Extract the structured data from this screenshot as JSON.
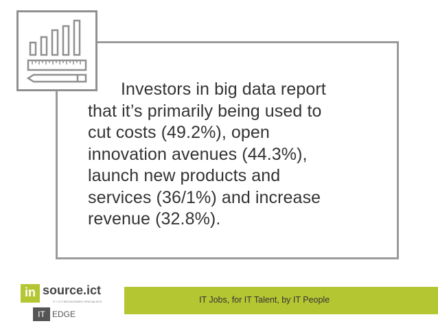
{
  "quote": {
    "text": "Investors in big data report\nthat it’s primarily being used to\ncut costs (49.2%), open\ninnovation avenues (44.3%),\nlaunch new products and\nservices (36/1%) and increase\nrevenue (32.8%)."
  },
  "icon": {
    "name": "bar-chart-ruler-pencil-icon"
  },
  "logo": {
    "mark": "in",
    "name": "source.ict",
    "tagline": "IT + ICT RECRUITMENT SPECIALISTS",
    "badge": "IT",
    "suffix": "EDGE"
  },
  "footer": {
    "tagline": "IT Jobs, for IT Talent, by IT People"
  },
  "colors": {
    "accent": "#b5c633",
    "frame": "#9a9a9a",
    "text": "#333333",
    "dark": "#555555"
  }
}
